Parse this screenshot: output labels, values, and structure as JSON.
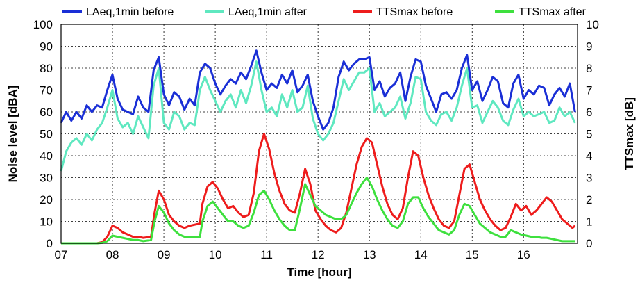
{
  "chart_data": {
    "type": "line",
    "title": "",
    "xlabel": "Time [hour]",
    "ylabel": "Noise level [dBA]",
    "y2label": "TTSmax [dB]",
    "xlim": [
      7,
      17.05
    ],
    "ylim": [
      0,
      100
    ],
    "y2lim": [
      0,
      10
    ],
    "x_ticks": [
      "07",
      "08",
      "09",
      "10",
      "11",
      "12",
      "13",
      "14",
      "15",
      "16"
    ],
    "y_ticks": [
      "0",
      "10",
      "20",
      "30",
      "40",
      "50",
      "60",
      "70",
      "80",
      "90",
      "100"
    ],
    "y2_ticks": [
      "0",
      "1",
      "2",
      "3",
      "4",
      "5",
      "6",
      "7",
      "8",
      "9",
      "10"
    ],
    "grid": true,
    "legend": "top",
    "series": [
      {
        "name": "LAeq,1min before",
        "axis": "left",
        "color": "#1a2fd6",
        "x": [
          7.0,
          7.1,
          7.2,
          7.3,
          7.4,
          7.5,
          7.6,
          7.7,
          7.8,
          7.9,
          8.0,
          8.1,
          8.2,
          8.3,
          8.4,
          8.5,
          8.6,
          8.7,
          8.8,
          8.9,
          9.0,
          9.1,
          9.2,
          9.3,
          9.4,
          9.5,
          9.6,
          9.7,
          9.8,
          9.9,
          10.0,
          10.1,
          10.2,
          10.3,
          10.4,
          10.5,
          10.6,
          10.7,
          10.8,
          10.9,
          11.0,
          11.1,
          11.2,
          11.3,
          11.4,
          11.5,
          11.6,
          11.7,
          11.8,
          11.9,
          12.0,
          12.1,
          12.2,
          12.3,
          12.4,
          12.5,
          12.6,
          12.7,
          12.8,
          12.9,
          13.0,
          13.1,
          13.2,
          13.3,
          13.4,
          13.5,
          13.6,
          13.7,
          13.8,
          13.9,
          14.0,
          14.1,
          14.2,
          14.3,
          14.4,
          14.5,
          14.6,
          14.7,
          14.8,
          14.9,
          15.0,
          15.1,
          15.2,
          15.3,
          15.4,
          15.5,
          15.6,
          15.7,
          15.8,
          15.9,
          16.0,
          16.1,
          16.2,
          16.3,
          16.4,
          16.5,
          16.6,
          16.7,
          16.8,
          16.9,
          17.0
        ],
        "y": [
          55,
          60,
          56,
          60,
          57,
          63,
          60,
          63,
          62,
          70,
          77,
          66,
          61,
          60,
          59,
          67,
          62,
          60,
          79,
          85,
          68,
          63,
          69,
          67,
          61,
          66,
          63,
          78,
          82,
          80,
          73,
          68,
          72,
          75,
          73,
          78,
          75,
          81,
          88,
          78,
          70,
          73,
          71,
          77,
          73,
          79,
          69,
          72,
          77,
          65,
          58,
          52,
          55,
          62,
          76,
          83,
          79,
          82,
          84,
          84,
          85,
          70,
          74,
          67,
          71,
          73,
          78,
          65,
          76,
          84,
          83,
          72,
          66,
          60,
          68,
          69,
          66,
          70,
          80,
          86,
          70,
          74,
          65,
          70,
          76,
          74,
          64,
          62,
          73,
          77,
          66,
          70,
          68,
          72,
          71,
          63,
          68,
          71,
          67,
          73,
          60
        ]
      },
      {
        "name": "LAeq,1min after",
        "axis": "left",
        "color": "#5fe8c0",
        "x": [
          7.0,
          7.1,
          7.2,
          7.3,
          7.4,
          7.5,
          7.6,
          7.7,
          7.8,
          7.9,
          8.0,
          8.1,
          8.2,
          8.3,
          8.4,
          8.5,
          8.6,
          8.7,
          8.8,
          8.9,
          9.0,
          9.1,
          9.2,
          9.3,
          9.4,
          9.5,
          9.6,
          9.7,
          9.8,
          9.9,
          10.0,
          10.1,
          10.2,
          10.3,
          10.4,
          10.5,
          10.6,
          10.7,
          10.8,
          10.9,
          11.0,
          11.1,
          11.2,
          11.3,
          11.4,
          11.5,
          11.6,
          11.7,
          11.8,
          11.9,
          12.0,
          12.1,
          12.2,
          12.3,
          12.4,
          12.5,
          12.6,
          12.7,
          12.8,
          12.9,
          13.0,
          13.1,
          13.2,
          13.3,
          13.4,
          13.5,
          13.6,
          13.7,
          13.8,
          13.9,
          14.0,
          14.1,
          14.2,
          14.3,
          14.4,
          14.5,
          14.6,
          14.7,
          14.8,
          14.9,
          15.0,
          15.1,
          15.2,
          15.3,
          15.4,
          15.5,
          15.6,
          15.7,
          15.8,
          15.9,
          16.0,
          16.1,
          16.2,
          16.3,
          16.4,
          16.5,
          16.6,
          16.7,
          16.8,
          16.9,
          17.0
        ],
        "y": [
          33,
          42,
          46,
          48,
          45,
          50,
          47,
          52,
          55,
          62,
          70,
          57,
          53,
          55,
          50,
          58,
          53,
          48,
          72,
          80,
          55,
          52,
          60,
          58,
          52,
          55,
          54,
          70,
          76,
          70,
          65,
          60,
          65,
          68,
          62,
          70,
          64,
          72,
          83,
          70,
          60,
          62,
          58,
          68,
          62,
          70,
          60,
          62,
          72,
          57,
          50,
          47,
          50,
          55,
          65,
          75,
          70,
          74,
          78,
          78,
          80,
          60,
          64,
          58,
          60,
          62,
          67,
          57,
          64,
          76,
          75,
          60,
          56,
          54,
          59,
          60,
          56,
          62,
          72,
          80,
          62,
          63,
          55,
          60,
          65,
          62,
          56,
          54,
          61,
          66,
          58,
          60,
          58,
          59,
          60,
          55,
          56,
          62,
          58,
          60,
          55
        ]
      },
      {
        "name": "TTSmax before",
        "axis": "right",
        "color": "#ee1c1c",
        "x": [
          7.0,
          7.7,
          7.8,
          7.9,
          8.0,
          8.1,
          8.2,
          8.3,
          8.4,
          8.5,
          8.6,
          8.75,
          8.82,
          8.9,
          9.0,
          9.1,
          9.2,
          9.3,
          9.4,
          9.5,
          9.6,
          9.7,
          9.75,
          9.85,
          9.95,
          10.05,
          10.15,
          10.25,
          10.35,
          10.45,
          10.55,
          10.65,
          10.75,
          10.85,
          10.95,
          11.05,
          11.15,
          11.25,
          11.35,
          11.45,
          11.55,
          11.65,
          11.75,
          11.85,
          11.95,
          12.05,
          12.15,
          12.25,
          12.35,
          12.45,
          12.55,
          12.65,
          12.75,
          12.85,
          12.95,
          13.05,
          13.15,
          13.25,
          13.35,
          13.45,
          13.55,
          13.65,
          13.75,
          13.85,
          13.95,
          14.05,
          14.15,
          14.25,
          14.35,
          14.45,
          14.55,
          14.65,
          14.75,
          14.85,
          14.95,
          15.05,
          15.15,
          15.25,
          15.35,
          15.45,
          15.55,
          15.65,
          15.75,
          15.85,
          15.95,
          16.05,
          16.15,
          16.25,
          16.35,
          16.45,
          16.55,
          16.65,
          16.75,
          16.85,
          16.95,
          17.0
        ],
        "y": [
          0,
          0,
          0.05,
          0.3,
          0.8,
          0.7,
          0.5,
          0.4,
          0.3,
          0.3,
          0.25,
          0.3,
          1.4,
          2.4,
          2.0,
          1.3,
          1.0,
          0.8,
          0.7,
          0.8,
          0.85,
          0.9,
          1.8,
          2.6,
          2.8,
          2.5,
          2.0,
          1.6,
          1.7,
          1.4,
          1.2,
          1.3,
          2.3,
          4.2,
          5.0,
          4.3,
          3.2,
          2.4,
          1.8,
          1.5,
          1.4,
          2.3,
          3.4,
          2.7,
          1.5,
          1.1,
          0.8,
          0.6,
          0.5,
          0.7,
          1.4,
          2.5,
          3.6,
          4.4,
          4.8,
          4.6,
          3.6,
          2.6,
          1.8,
          1.3,
          1.1,
          1.6,
          3.0,
          4.2,
          4.0,
          3.0,
          2.2,
          1.6,
          1.1,
          0.8,
          0.7,
          1.0,
          2.2,
          3.4,
          3.6,
          2.8,
          2.0,
          1.5,
          1.1,
          0.8,
          0.6,
          0.7,
          1.2,
          1.8,
          1.5,
          1.7,
          1.3,
          1.5,
          1.8,
          2.1,
          1.9,
          1.5,
          1.1,
          0.9,
          0.7,
          0.8
        ]
      },
      {
        "name": "TTSmax after",
        "axis": "right",
        "color": "#3ee03e",
        "x": [
          7.0,
          7.7,
          7.8,
          7.9,
          8.0,
          8.1,
          8.2,
          8.3,
          8.4,
          8.5,
          8.6,
          8.75,
          8.82,
          8.9,
          9.0,
          9.1,
          9.2,
          9.3,
          9.4,
          9.5,
          9.6,
          9.7,
          9.75,
          9.85,
          9.95,
          10.05,
          10.15,
          10.25,
          10.35,
          10.45,
          10.55,
          10.65,
          10.75,
          10.85,
          10.95,
          11.05,
          11.15,
          11.25,
          11.35,
          11.45,
          11.55,
          11.65,
          11.75,
          11.85,
          11.95,
          12.05,
          12.15,
          12.25,
          12.35,
          12.45,
          12.55,
          12.65,
          12.75,
          12.85,
          12.95,
          13.05,
          13.15,
          13.25,
          13.35,
          13.45,
          13.55,
          13.65,
          13.75,
          13.85,
          13.95,
          14.05,
          14.15,
          14.25,
          14.35,
          14.45,
          14.55,
          14.65,
          14.75,
          14.85,
          14.95,
          15.05,
          15.15,
          15.25,
          15.35,
          15.45,
          15.55,
          15.65,
          15.75,
          15.85,
          15.95,
          16.05,
          16.15,
          16.25,
          16.35,
          16.45,
          16.55,
          16.65,
          16.75,
          16.85,
          16.95,
          17.0
        ],
        "y": [
          0,
          0,
          0.02,
          0.1,
          0.35,
          0.3,
          0.25,
          0.2,
          0.15,
          0.15,
          0.1,
          0.15,
          1.0,
          1.7,
          1.4,
          0.9,
          0.6,
          0.4,
          0.3,
          0.3,
          0.3,
          0.3,
          1.0,
          1.7,
          1.9,
          1.6,
          1.3,
          1.0,
          1.0,
          0.8,
          0.7,
          0.8,
          1.4,
          2.2,
          2.4,
          2.0,
          1.5,
          1.1,
          0.8,
          0.6,
          0.6,
          1.6,
          2.7,
          2.2,
          1.7,
          1.5,
          1.3,
          1.2,
          1.1,
          1.1,
          1.3,
          1.8,
          2.3,
          2.7,
          3.0,
          2.6,
          2.0,
          1.5,
          1.1,
          0.8,
          0.7,
          1.0,
          1.8,
          2.1,
          2.1,
          1.6,
          1.2,
          0.9,
          0.6,
          0.5,
          0.4,
          0.6,
          1.3,
          1.8,
          1.7,
          1.3,
          0.9,
          0.7,
          0.5,
          0.4,
          0.3,
          0.3,
          0.6,
          0.5,
          0.4,
          0.35,
          0.3,
          0.3,
          0.25,
          0.25,
          0.2,
          0.15,
          0.1,
          0.1,
          0.1,
          0.1
        ]
      }
    ]
  }
}
